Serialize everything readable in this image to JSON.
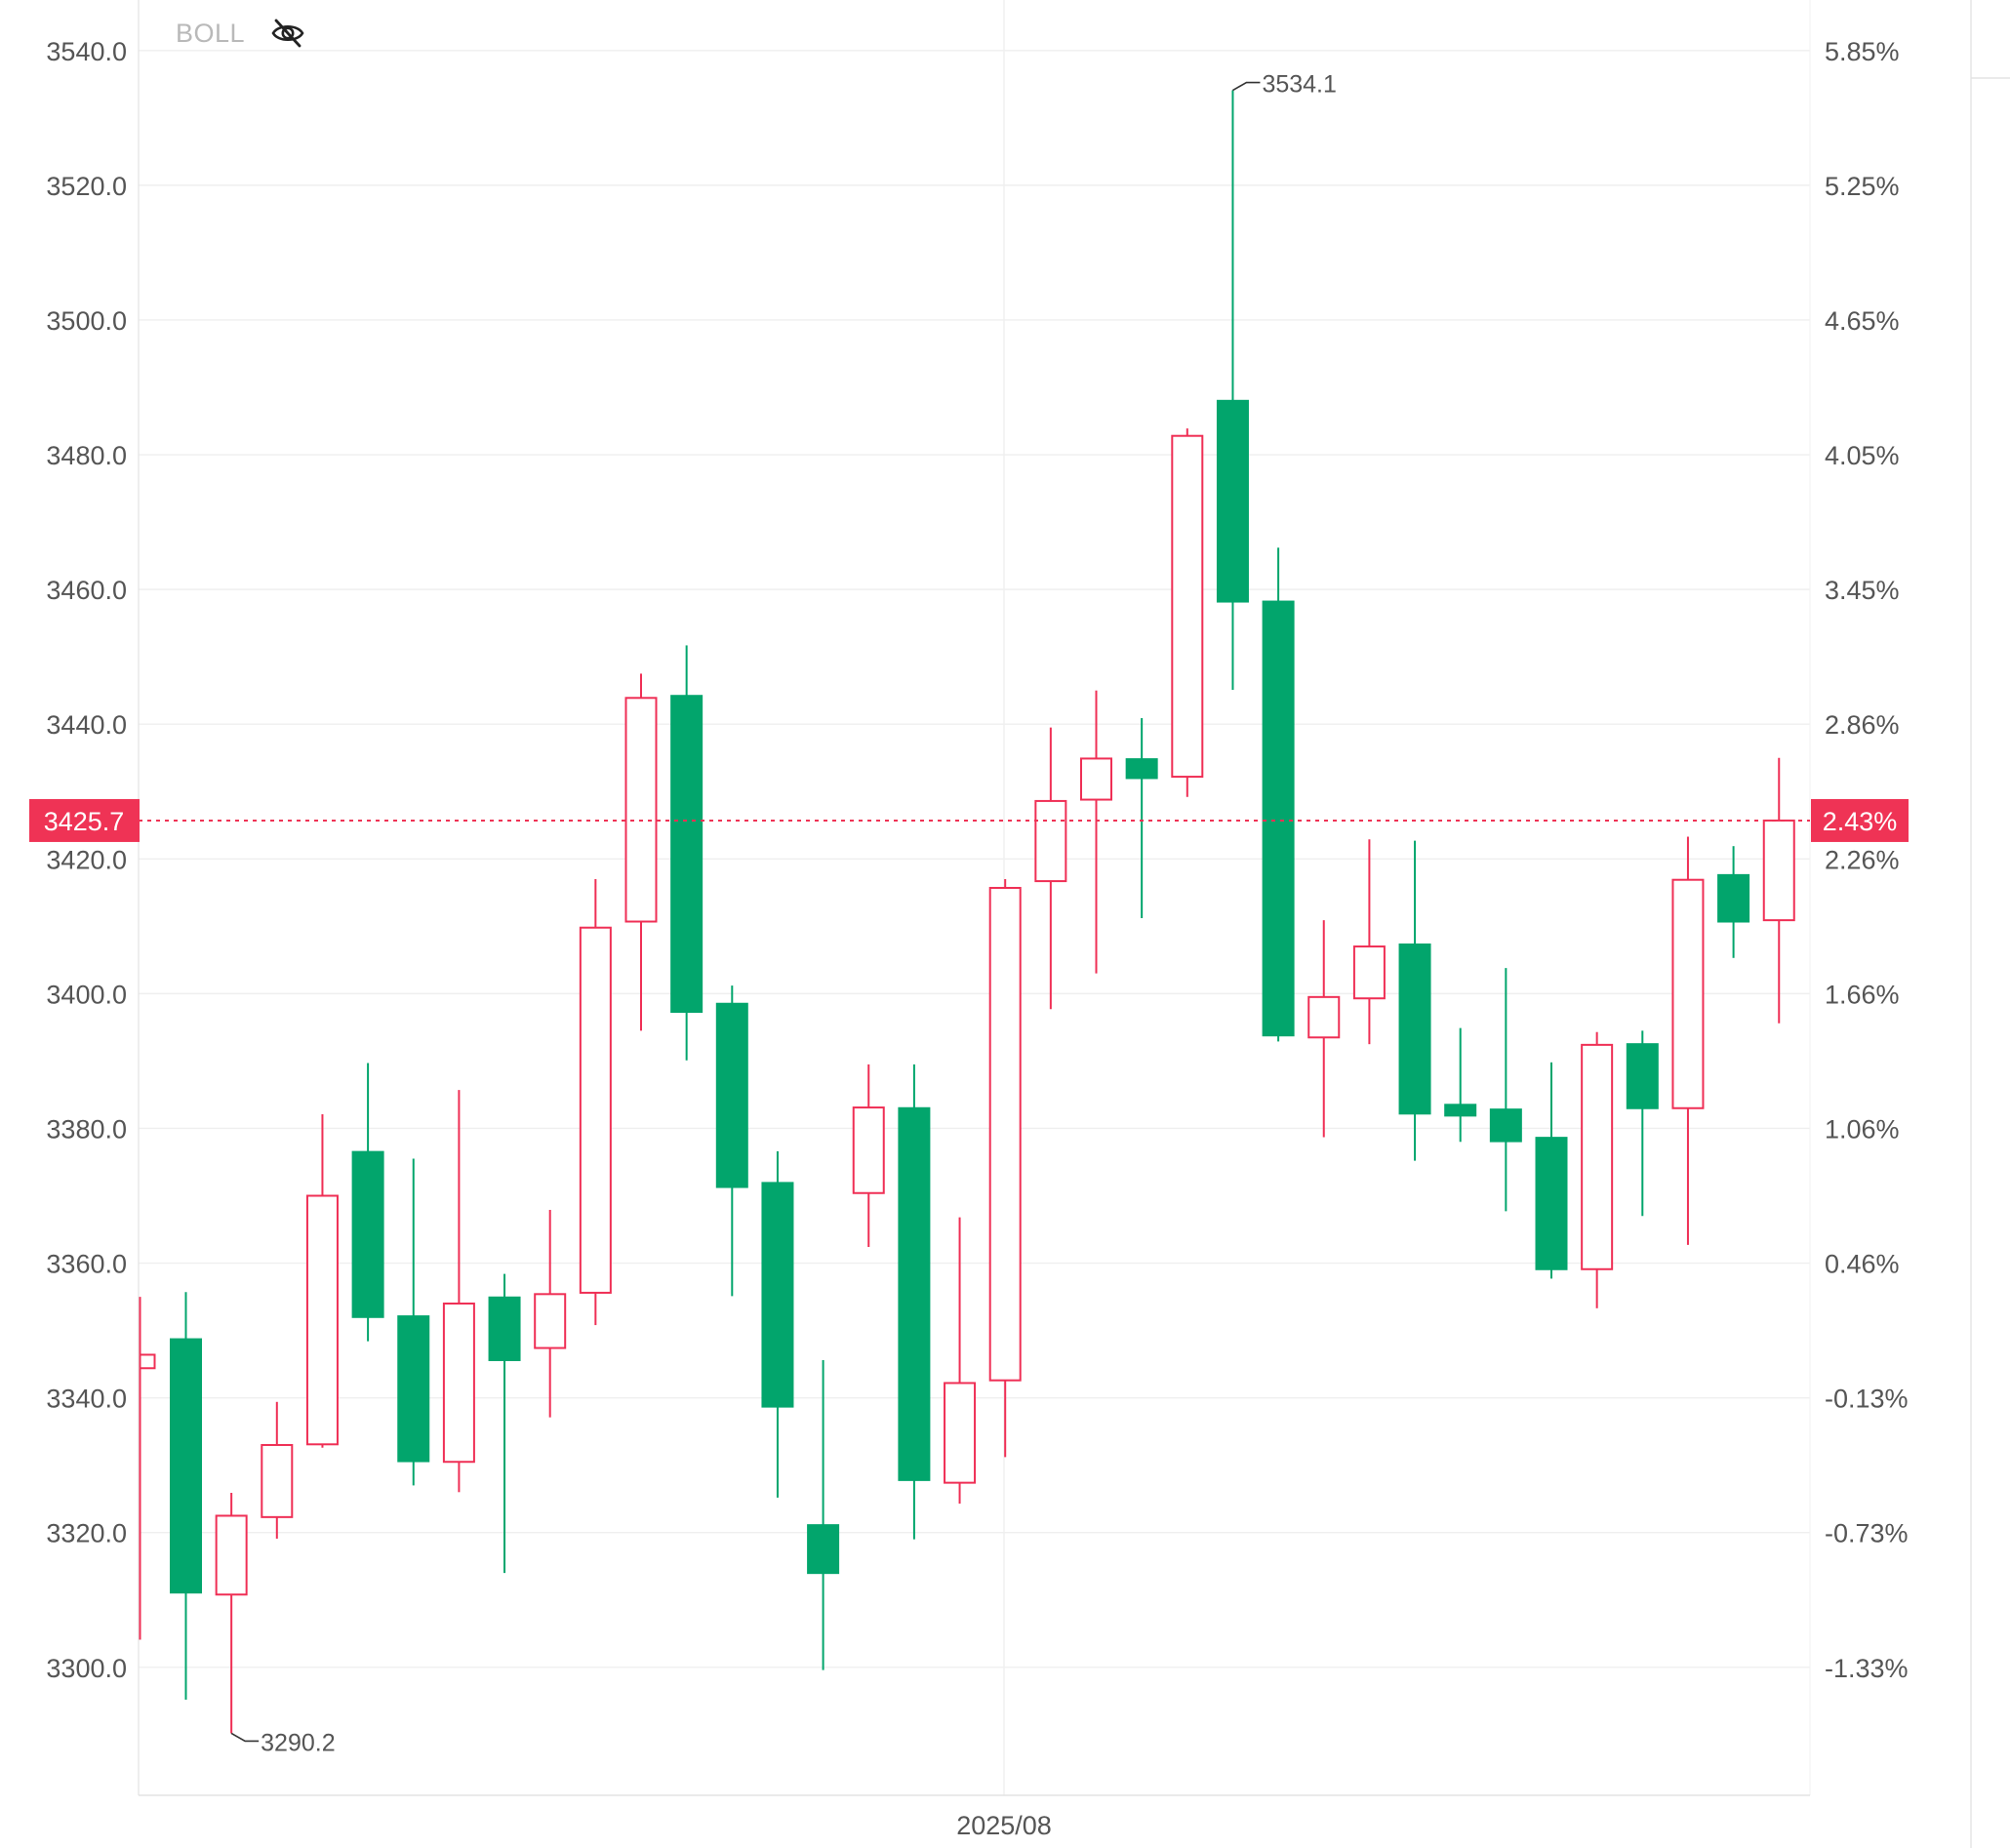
{
  "indicator": {
    "label": "BOLL",
    "visibility_icon": "eye-slash-icon"
  },
  "colors": {
    "up": "#ef2f55",
    "down": "#02a56c",
    "grid": "#efefef",
    "axis_text": "#555555",
    "marker_text": "#555555",
    "current_price_bg": "#ef3355",
    "current_price_text": "#ffffff"
  },
  "chart_data": {
    "type": "candlestick",
    "x_label": "2025/08",
    "y_axis_left": {
      "range": [
        3281,
        3547.5
      ],
      "ticks": [
        "3300.0",
        "3320.0",
        "3340.0",
        "3360.0",
        "3380.0",
        "3400.0",
        "3420.0",
        "3440.0",
        "3460.0",
        "3480.0",
        "3500.0",
        "3520.0",
        "3540.0"
      ]
    },
    "y_axis_right": {
      "ticks": [
        {
          "price": 3300,
          "label": "-1.33%"
        },
        {
          "price": 3320,
          "label": "-0.73%"
        },
        {
          "price": 3340,
          "label": "-0.13%"
        },
        {
          "price": 3360,
          "label": "0.46%"
        },
        {
          "price": 3380,
          "label": "1.06%"
        },
        {
          "price": 3400,
          "label": "1.66%"
        },
        {
          "price": 3420,
          "label": "2.26%"
        },
        {
          "price": 3440,
          "label": "2.86%"
        },
        {
          "price": 3460,
          "label": "3.45%"
        },
        {
          "price": 3480,
          "label": "4.05%"
        },
        {
          "price": 3500,
          "label": "4.65%"
        },
        {
          "price": 3520,
          "label": "5.25%"
        },
        {
          "price": 3540,
          "label": "5.85%"
        }
      ]
    },
    "current_price": {
      "value": 3425.7,
      "label": "3425.7",
      "pct_label": "2.43%"
    },
    "high_marker": {
      "value": 3534.1,
      "label": "3534.1",
      "candle_index": 24
    },
    "low_marker": {
      "value": 3290.2,
      "label": "3290.2",
      "candle_index": 2
    },
    "partial_first_candle": {
      "open": 3344.4,
      "close": 3346.4,
      "high": 3355.0,
      "low": 3304.1
    },
    "candles": [
      {
        "open": 3348.7,
        "close": 3311.1,
        "high": 3355.7,
        "low": 3295.2
      },
      {
        "open": 3310.8,
        "close": 3322.5,
        "high": 3325.9,
        "low": 3290.2
      },
      {
        "open": 3322.3,
        "close": 3333.0,
        "high": 3339.4,
        "low": 3319.1
      },
      {
        "open": 3333.1,
        "close": 3370.0,
        "high": 3382.1,
        "low": 3332.6
      },
      {
        "open": 3376.5,
        "close": 3352.0,
        "high": 3389.7,
        "low": 3348.4
      },
      {
        "open": 3352.1,
        "close": 3330.6,
        "high": 3375.5,
        "low": 3327.0
      },
      {
        "open": 3330.5,
        "close": 3354.0,
        "high": 3385.7,
        "low": 3326.0
      },
      {
        "open": 3354.9,
        "close": 3345.6,
        "high": 3358.4,
        "low": 3314.0
      },
      {
        "open": 3347.4,
        "close": 3355.4,
        "high": 3367.9,
        "low": 3337.1
      },
      {
        "open": 3355.6,
        "close": 3409.8,
        "high": 3417.0,
        "low": 3350.8
      },
      {
        "open": 3410.7,
        "close": 3443.9,
        "high": 3447.5,
        "low": 3394.5
      },
      {
        "open": 3444.2,
        "close": 3397.3,
        "high": 3451.7,
        "low": 3390.1
      },
      {
        "open": 3398.5,
        "close": 3371.3,
        "high": 3401.2,
        "low": 3355.1
      },
      {
        "open": 3371.9,
        "close": 3338.7,
        "high": 3376.6,
        "low": 3325.2
      },
      {
        "open": 3321.1,
        "close": 3314.0,
        "high": 3345.6,
        "low": 3299.6
      },
      {
        "open": 3370.4,
        "close": 3383.1,
        "high": 3389.5,
        "low": 3362.4
      },
      {
        "open": 3383.0,
        "close": 3327.8,
        "high": 3389.5,
        "low": 3319.0
      },
      {
        "open": 3327.4,
        "close": 3342.2,
        "high": 3366.8,
        "low": 3324.3
      },
      {
        "open": 3342.6,
        "close": 3415.7,
        "high": 3417.0,
        "low": 3331.2
      },
      {
        "open": 3416.7,
        "close": 3428.6,
        "high": 3439.5,
        "low": 3397.7
      },
      {
        "open": 3428.8,
        "close": 3434.9,
        "high": 3445.0,
        "low": 3403.0
      },
      {
        "open": 3434.8,
        "close": 3432.0,
        "high": 3440.9,
        "low": 3411.2
      },
      {
        "open": 3432.2,
        "close": 3482.8,
        "high": 3483.9,
        "low": 3429.2
      },
      {
        "open": 3488.0,
        "close": 3458.2,
        "high": 3534.1,
        "low": 3445.1
      },
      {
        "open": 3458.2,
        "close": 3393.8,
        "high": 3466.2,
        "low": 3392.9
      },
      {
        "open": 3393.5,
        "close": 3399.5,
        "high": 3410.9,
        "low": 3378.7
      },
      {
        "open": 3399.3,
        "close": 3407.0,
        "high": 3422.9,
        "low": 3392.5
      },
      {
        "open": 3407.3,
        "close": 3382.2,
        "high": 3422.7,
        "low": 3375.2
      },
      {
        "open": 3383.5,
        "close": 3381.9,
        "high": 3394.9,
        "low": 3378.0
      },
      {
        "open": 3382.8,
        "close": 3378.1,
        "high": 3403.8,
        "low": 3367.7
      },
      {
        "open": 3378.6,
        "close": 3359.1,
        "high": 3389.8,
        "low": 3357.7
      },
      {
        "open": 3359.1,
        "close": 3392.4,
        "high": 3394.3,
        "low": 3353.3
      },
      {
        "open": 3392.5,
        "close": 3383.0,
        "high": 3394.5,
        "low": 3367.0
      },
      {
        "open": 3383.0,
        "close": 3416.9,
        "high": 3423.3,
        "low": 3362.7
      },
      {
        "open": 3417.6,
        "close": 3410.7,
        "high": 3421.9,
        "low": 3405.3
      },
      {
        "open": 3410.9,
        "close": 3425.7,
        "high": 3435.0,
        "low": 3395.6
      }
    ]
  }
}
